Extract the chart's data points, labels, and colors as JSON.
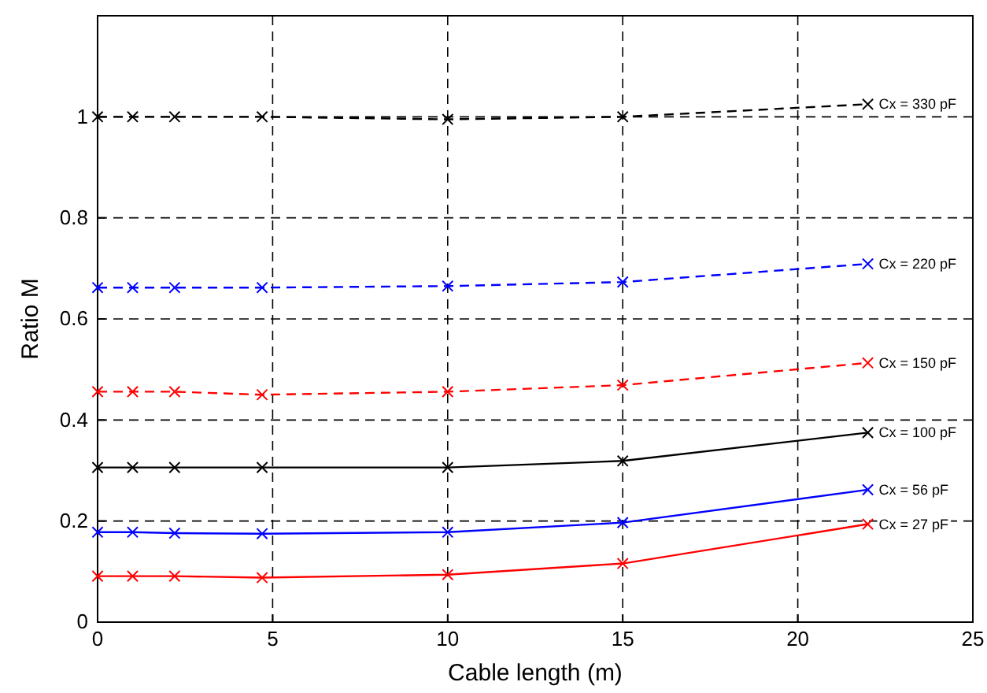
{
  "chart_data": {
    "type": "line",
    "xlabel": "Cable length (m)",
    "ylabel": "Ratio M",
    "x": [
      0,
      1,
      2.2,
      4.7,
      10,
      15,
      22
    ],
    "xlim": [
      0,
      25
    ],
    "xticks": [
      0,
      5,
      10,
      15,
      20,
      25
    ],
    "ylim": [
      0,
      1.2
    ],
    "yticks": [
      0,
      0.2,
      0.4,
      0.6,
      0.8,
      1
    ],
    "grid": true,
    "marker": "cross",
    "series": [
      {
        "name": "Cx = 330 pF",
        "color": "#000000",
        "line_style": "dashed",
        "values": [
          1.0,
          1.0,
          1.0,
          1.0,
          0.995,
          1.0,
          1.025
        ]
      },
      {
        "name": "Cx = 220 pF",
        "color": "#0000ff",
        "line_style": "dashed",
        "values": [
          0.662,
          0.662,
          0.662,
          0.662,
          0.665,
          0.673,
          0.709
        ]
      },
      {
        "name": "Cx = 150 pF",
        "color": "#ff0000",
        "line_style": "dashed",
        "values": [
          0.456,
          0.456,
          0.456,
          0.45,
          0.456,
          0.469,
          0.513
        ]
      },
      {
        "name": "Cx = 100 pF",
        "color": "#000000",
        "line_style": "solid",
        "values": [
          0.306,
          0.306,
          0.306,
          0.306,
          0.306,
          0.319,
          0.375
        ]
      },
      {
        "name": "Cx = 56 pF",
        "color": "#0000ff",
        "line_style": "solid",
        "values": [
          0.178,
          0.178,
          0.176,
          0.175,
          0.178,
          0.197,
          0.262
        ]
      },
      {
        "name": "Cx = 27 pF",
        "color": "#ff0000",
        "line_style": "solid",
        "values": [
          0.091,
          0.091,
          0.091,
          0.088,
          0.094,
          0.116,
          0.194
        ]
      }
    ]
  }
}
